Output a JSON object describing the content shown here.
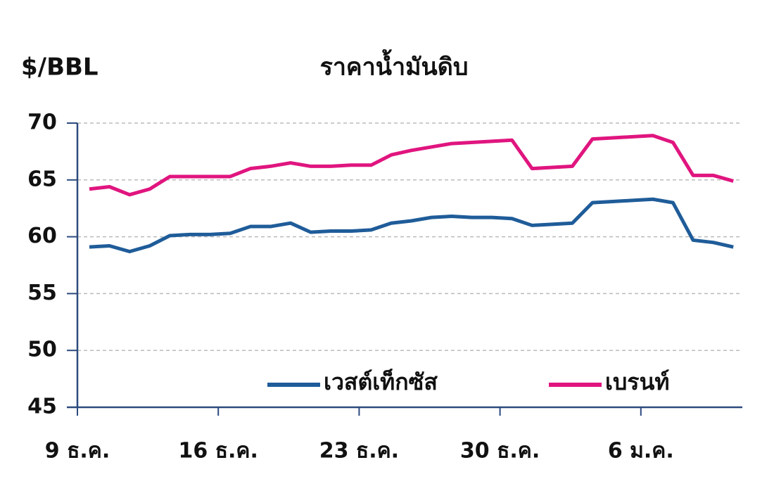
{
  "chart_data": {
    "type": "line",
    "title": "ราคาน้ำมันดิบ",
    "y_label": "$/BBL",
    "categories": [
      "9 ธ.ค.",
      null,
      null,
      null,
      null,
      null,
      null,
      "16 ธ.ค.",
      null,
      null,
      null,
      null,
      null,
      null,
      "23 ธ.ค.",
      null,
      null,
      null,
      null,
      null,
      null,
      "30 ธ.ค.",
      null,
      null,
      null,
      null,
      null,
      null,
      "6 ม.ค.",
      null,
      null,
      null,
      null
    ],
    "series": [
      {
        "name": "เวสต์เท็กซัส",
        "color": "#1f5c99",
        "values": [
          59.1,
          59.2,
          58.7,
          59.2,
          60.1,
          60.2,
          60.2,
          60.3,
          60.9,
          60.9,
          61.2,
          60.4,
          60.5,
          60.5,
          60.6,
          61.2,
          61.4,
          61.7,
          61.8,
          61.7,
          61.7,
          61.6,
          61.0,
          61.1,
          61.2,
          63.0,
          63.1,
          63.2,
          63.3,
          63.0,
          59.7,
          59.5,
          59.1
        ]
      },
      {
        "name": "เบรนท์",
        "color": "#e0157f",
        "values": [
          64.2,
          64.4,
          63.7,
          64.2,
          65.3,
          65.3,
          65.3,
          65.3,
          66.0,
          66.2,
          66.5,
          66.2,
          66.2,
          66.3,
          66.3,
          67.2,
          67.6,
          67.9,
          68.2,
          68.3,
          68.4,
          68.5,
          66.0,
          66.1,
          66.2,
          68.6,
          68.7,
          68.8,
          68.9,
          68.3,
          65.4,
          65.4,
          64.9
        ]
      }
    ],
    "ylim": [
      45,
      70
    ],
    "yticks": [
      45,
      50,
      55,
      60,
      65,
      70
    ],
    "grid": true
  }
}
